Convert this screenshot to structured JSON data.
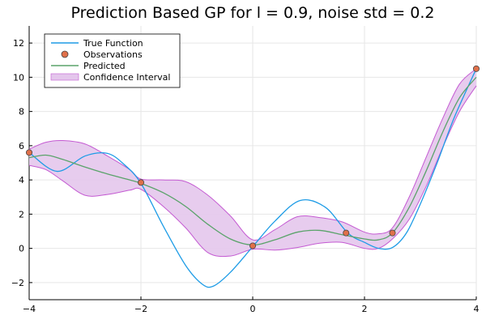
{
  "chart_data": {
    "type": "line",
    "title": "Prediction Based GP for l = 0.9, noise std = 0.2",
    "xlabel": "",
    "ylabel": "",
    "xlim": [
      -4,
      4
    ],
    "ylim": [
      -3,
      13
    ],
    "xticks": [
      -4,
      -2,
      0,
      2,
      4
    ],
    "yticks": [
      -2,
      0,
      2,
      4,
      6,
      8,
      10,
      12
    ],
    "xtick_labels": [
      "−4",
      "−2",
      "0",
      "2",
      "4"
    ],
    "ytick_labels": [
      "−2",
      "0",
      "2",
      "4",
      "6",
      "8",
      "10",
      "12"
    ],
    "grid": true,
    "legend_position": "top-left",
    "legend": [
      "True Function",
      "Observations",
      "Predicted",
      "Confidence Interval"
    ],
    "colors": {
      "true_function": "#1e9ce6",
      "observations": "#e0704a",
      "predicted": "#5aa36a",
      "confidence_fill": "#e4c6ec",
      "confidence_edge": "#c45ad2"
    },
    "series": [
      {
        "name": "True Function",
        "x": [
          -4,
          -3.5,
          -3.0,
          -2.6,
          -2.3,
          -2.0,
          -1.6,
          -1.2,
          -0.9,
          -0.7,
          -0.4,
          0.0,
          0.4,
          0.85,
          1.3,
          1.7,
          2.0,
          2.25,
          2.5,
          2.75,
          3.0,
          3.3,
          3.6,
          4.0
        ],
        "y": [
          5.6,
          4.5,
          5.4,
          5.55,
          4.9,
          3.8,
          1.3,
          -1.0,
          -2.1,
          -2.2,
          -1.4,
          0.1,
          1.6,
          2.8,
          2.4,
          0.9,
          0.35,
          0.0,
          0.05,
          0.9,
          2.6,
          5.0,
          7.6,
          10.5
        ]
      },
      {
        "name": "Observations",
        "x": [
          -4.0,
          -2.0,
          0.0,
          1.67,
          2.5,
          4.0
        ],
        "y": [
          5.6,
          3.85,
          0.15,
          0.9,
          0.9,
          10.5
        ]
      },
      {
        "name": "Predicted",
        "x": [
          -4,
          -3.7,
          -3.4,
          -3.0,
          -2.6,
          -2.2,
          -2.0,
          -1.6,
          -1.2,
          -0.8,
          -0.4,
          0.0,
          0.4,
          0.8,
          1.2,
          1.6,
          2.0,
          2.25,
          2.5,
          2.8,
          3.1,
          3.4,
          3.7,
          4.0
        ],
        "y": [
          5.3,
          5.45,
          5.2,
          4.75,
          4.35,
          4.0,
          3.8,
          3.25,
          2.45,
          1.4,
          0.55,
          0.2,
          0.5,
          0.95,
          1.05,
          0.8,
          0.55,
          0.5,
          0.9,
          2.4,
          4.5,
          6.8,
          8.8,
          10.0
        ]
      },
      {
        "name": "Confidence Interval",
        "x": [
          -4,
          -3.7,
          -3.4,
          -3.0,
          -2.6,
          -2.2,
          -2.0,
          -1.6,
          -1.2,
          -0.8,
          -0.4,
          0.0,
          0.4,
          0.8,
          1.2,
          1.6,
          2.0,
          2.25,
          2.5,
          2.8,
          3.1,
          3.4,
          3.7,
          4.0
        ],
        "upper": [
          5.8,
          6.2,
          6.3,
          6.1,
          5.4,
          4.6,
          4.05,
          4.0,
          3.9,
          3.1,
          1.9,
          0.5,
          1.1,
          1.85,
          1.8,
          1.55,
          0.95,
          0.85,
          1.2,
          3.0,
          5.3,
          7.6,
          9.6,
          10.5
        ]
      }
    ],
    "confidence_lower": [
      4.85,
      4.6,
      3.95,
      3.1,
      3.15,
      3.4,
      3.45,
      2.45,
      1.2,
      -0.25,
      -0.45,
      -0.05,
      -0.1,
      0.05,
      0.3,
      0.35,
      0.0,
      0.0,
      0.55,
      1.7,
      3.6,
      5.9,
      8.0,
      9.5
    ]
  }
}
